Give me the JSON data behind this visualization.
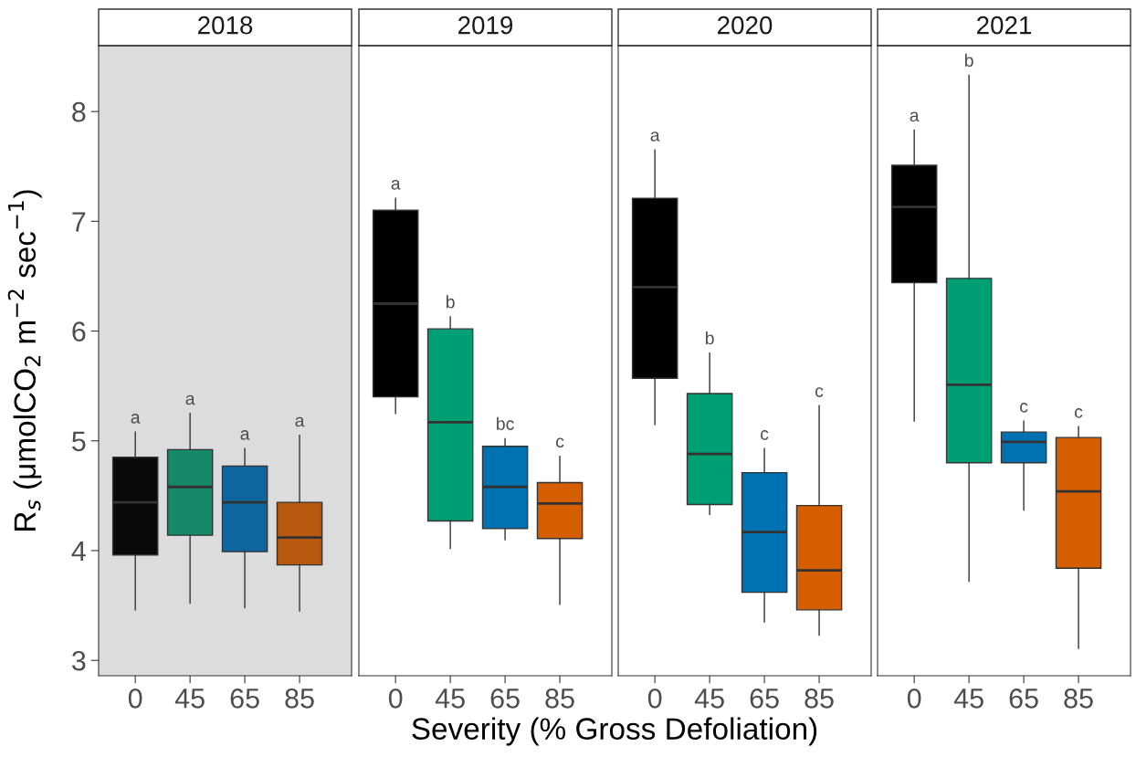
{
  "chart_data": [
    {
      "type": "box",
      "title": "2018",
      "xlabel": "Severity (% Gross Defoliation)",
      "ylabel": "R$_{s}$ (μmolCO$_{2}$ m$^{−2}$ sec$^{−1}$)",
      "categories": [
        "0",
        "45",
        "65",
        "85"
      ],
      "colors": [
        "#0a0a0a",
        "#168a68",
        "#0f65a0",
        "#b8570e"
      ],
      "boxes": [
        {
          "low": 3.46,
          "q1": 3.96,
          "median": 4.44,
          "q3": 4.85,
          "high": 5.08
        },
        {
          "low": 3.52,
          "q1": 4.14,
          "median": 4.58,
          "q3": 4.92,
          "high": 5.25
        },
        {
          "low": 3.48,
          "q1": 3.99,
          "median": 4.44,
          "q3": 4.77,
          "high": 4.93
        },
        {
          "low": 3.45,
          "q1": 3.87,
          "median": 4.12,
          "q3": 4.44,
          "high": 5.05
        }
      ],
      "annotations": [
        {
          "text": "a",
          "x": "0",
          "y": 5.08
        },
        {
          "text": "a",
          "x": "45",
          "y": 5.25
        },
        {
          "text": "a",
          "x": "65",
          "y": 4.93
        },
        {
          "text": "a",
          "x": "85",
          "y": 5.05
        }
      ],
      "bands": [
        {
          "axis": "y",
          "from": 2.86,
          "to": 8.6,
          "color": "#dcdcdc"
        }
      ],
      "ylim": [
        2.86,
        8.6
      ],
      "yticks": [
        3,
        4,
        5,
        6,
        7,
        8
      ],
      "grid": false
    },
    {
      "type": "box",
      "title": "2019",
      "categories": [
        "0",
        "45",
        "65",
        "85"
      ],
      "colors": [
        "#000000",
        "#009e73",
        "#0072b2",
        "#d55e00"
      ],
      "boxes": [
        {
          "low": 5.25,
          "q1": 5.4,
          "median": 6.25,
          "q3": 7.1,
          "high": 7.21
        },
        {
          "low": 4.02,
          "q1": 4.27,
          "median": 5.17,
          "q3": 6.02,
          "high": 6.13
        },
        {
          "low": 4.1,
          "q1": 4.2,
          "median": 4.58,
          "q3": 4.95,
          "high": 5.02
        },
        {
          "low": 3.51,
          "q1": 4.11,
          "median": 4.43,
          "q3": 4.62,
          "high": 4.86
        }
      ],
      "annotations": [
        {
          "text": "a",
          "x": "0",
          "y": 7.21
        },
        {
          "text": "b",
          "x": "45",
          "y": 6.13
        },
        {
          "text": "bc",
          "x": "65",
          "y": 5.02
        },
        {
          "text": "c",
          "x": "85",
          "y": 4.86
        }
      ],
      "ylim": [
        2.86,
        8.6
      ],
      "yticks": [
        3,
        4,
        5,
        6,
        7,
        8
      ],
      "tick_labels": "x",
      "grid": false
    },
    {
      "type": "box",
      "title": "2020",
      "categories": [
        "0",
        "45",
        "65",
        "85"
      ],
      "colors": [
        "#000000",
        "#009e73",
        "#0072b2",
        "#d55e00"
      ],
      "boxes": [
        {
          "low": 5.15,
          "q1": 5.57,
          "median": 6.4,
          "q3": 7.21,
          "high": 7.65
        },
        {
          "low": 4.33,
          "q1": 4.42,
          "median": 4.88,
          "q3": 5.43,
          "high": 5.8
        },
        {
          "low": 3.35,
          "q1": 3.62,
          "median": 4.17,
          "q3": 4.71,
          "high": 4.93
        },
        {
          "low": 3.23,
          "q1": 3.46,
          "median": 3.82,
          "q3": 4.41,
          "high": 5.32
        }
      ],
      "annotations": [
        {
          "text": "a",
          "x": "0",
          "y": 7.65
        },
        {
          "text": "b",
          "x": "45",
          "y": 5.8
        },
        {
          "text": "c",
          "x": "65",
          "y": 4.93
        },
        {
          "text": "c",
          "x": "85",
          "y": 5.32
        }
      ],
      "ylim": [
        2.86,
        8.6
      ],
      "yticks": [
        3,
        4,
        5,
        6,
        7,
        8
      ],
      "tick_labels": "x",
      "grid": false
    },
    {
      "type": "box",
      "title": "2021",
      "categories": [
        "0",
        "45",
        "65",
        "85"
      ],
      "colors": [
        "#000000",
        "#009e73",
        "#0072b2",
        "#d55e00"
      ],
      "boxes": [
        {
          "low": 5.18,
          "q1": 6.44,
          "median": 7.13,
          "q3": 7.51,
          "high": 7.83
        },
        {
          "low": 3.72,
          "q1": 4.8,
          "median": 5.51,
          "q3": 6.48,
          "high": 8.33
        },
        {
          "low": 4.37,
          "q1": 4.8,
          "median": 4.99,
          "q3": 5.08,
          "high": 5.18
        },
        {
          "low": 3.11,
          "q1": 3.84,
          "median": 4.54,
          "q3": 5.03,
          "high": 5.13
        }
      ],
      "annotations": [
        {
          "text": "a",
          "x": "0",
          "y": 7.83
        },
        {
          "text": "b",
          "x": "45",
          "y": 8.33
        },
        {
          "text": "c",
          "x": "65",
          "y": 5.18
        },
        {
          "text": "c",
          "x": "85",
          "y": 5.13
        }
      ],
      "ylim": [
        2.86,
        8.6
      ],
      "yticks": [
        3,
        4,
        5,
        6,
        7,
        8
      ],
      "tick_labels": "x",
      "grid": false
    }
  ]
}
